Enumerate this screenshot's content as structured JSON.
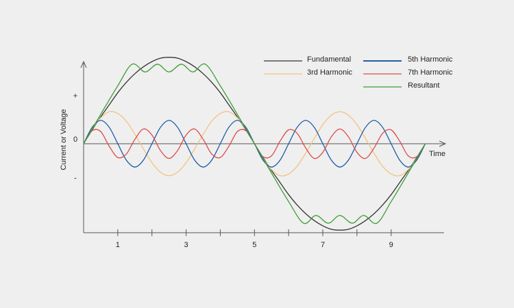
{
  "chart_data": {
    "type": "line",
    "x_label": "Time",
    "y_label": "Current or Voltage",
    "xlim": [
      0,
      10.55
    ],
    "ylim": [
      -1.03,
      0.95
    ],
    "xticks": [
      1,
      3,
      5,
      7,
      9
    ],
    "xminorticks": [
      2,
      4,
      6,
      8
    ],
    "yticks": [
      {
        "value": 0.5,
        "label": "+"
      },
      {
        "value": 0,
        "label": "0"
      },
      {
        "value": -0.45,
        "label": "-"
      }
    ],
    "grid": false,
    "x": [
      0,
      0.25,
      0.5,
      0.75,
      1,
      1.25,
      1.5,
      1.75,
      2,
      2.25,
      2.5,
      2.75,
      3,
      3.25,
      3.5,
      3.75,
      4,
      4.25,
      4.5,
      4.75,
      5,
      5.25,
      5.5,
      5.75,
      6,
      6.25,
      6.5,
      6.75,
      7,
      7.25,
      7.5,
      7.75,
      8,
      8.25,
      8.5,
      8.75,
      9,
      9.25,
      9.5,
      9.75,
      10
    ],
    "series": [
      {
        "name": "Fundamental",
        "color": "#333333",
        "values": [
          0,
          0.16,
          0.31,
          0.45,
          0.59,
          0.71,
          0.81,
          0.89,
          0.95,
          0.99,
          1,
          0.99,
          0.95,
          0.89,
          0.81,
          0.71,
          0.59,
          0.45,
          0.31,
          0.16,
          0,
          -0.16,
          -0.31,
          -0.45,
          -0.59,
          -0.71,
          -0.81,
          -0.89,
          -0.95,
          -0.99,
          -1,
          -0.99,
          -0.95,
          -0.89,
          -0.81,
          -0.71,
          -0.59,
          -0.45,
          -0.31,
          -0.16,
          0
        ]
      },
      {
        "name": "3rd Harmonic",
        "color": "#f2c27e",
        "values": [
          0,
          0.17,
          0.3,
          0.37,
          0.35,
          0.26,
          0.11,
          -0.06,
          -0.22,
          -0.33,
          -0.37,
          -0.33,
          -0.22,
          -0.06,
          0.11,
          0.26,
          0.35,
          0.37,
          0.3,
          0.17,
          0,
          -0.17,
          -0.3,
          -0.37,
          -0.35,
          -0.26,
          -0.11,
          0.06,
          0.22,
          0.33,
          0.37,
          0.33,
          0.22,
          0.06,
          -0.11,
          -0.26,
          -0.35,
          -0.37,
          -0.3,
          -0.17,
          0
        ]
      },
      {
        "name": "5th Harmonic",
        "color": "#1f5fa6",
        "values": [
          0,
          0.19,
          0.27,
          0.19,
          0,
          -0.19,
          -0.27,
          -0.19,
          0,
          0.19,
          0.27,
          0.19,
          0,
          -0.19,
          -0.27,
          -0.19,
          0,
          0.19,
          0.27,
          0.19,
          0,
          -0.19,
          -0.27,
          -0.19,
          0,
          0.19,
          0.27,
          0.19,
          0,
          -0.19,
          -0.27,
          -0.19,
          0,
          0.19,
          0.27,
          0.19,
          0,
          -0.19,
          -0.27,
          -0.19,
          0
        ]
      },
      {
        "name": "7th Harmonic",
        "color": "#dd4b4b",
        "values": [
          0,
          0.15,
          0.14,
          -0.03,
          -0.16,
          -0.12,
          0.05,
          0.17,
          0.1,
          -0.08,
          -0.17,
          -0.08,
          0.1,
          0.17,
          0.05,
          -0.12,
          -0.16,
          -0.03,
          0.14,
          0.15,
          0,
          -0.15,
          -0.14,
          0.03,
          0.16,
          0.12,
          -0.05,
          -0.17,
          -0.1,
          0.08,
          0.17,
          0.08,
          -0.1,
          -0.17,
          -0.05,
          0.12,
          0.16,
          0.03,
          -0.14,
          -0.15,
          0
        ]
      },
      {
        "name": "Resultant",
        "color": "#3c9e35",
        "x": [
          0,
          0.5,
          1,
          1.42,
          1.8,
          2.16,
          2.5,
          2.86,
          3.2,
          3.56,
          4,
          4.5,
          5,
          5.5,
          6,
          6.44,
          6.8,
          7.16,
          7.5,
          7.86,
          8.2,
          8.58,
          9,
          9.5,
          10
        ],
        "values": [
          0,
          0.34,
          0.67,
          0.92,
          0.83,
          0.92,
          0.83,
          0.92,
          0.83,
          0.92,
          0.67,
          0.34,
          0,
          -0.34,
          -0.67,
          -0.92,
          -0.83,
          -0.92,
          -0.83,
          -0.92,
          -0.83,
          -0.92,
          -0.67,
          -0.34,
          0
        ]
      }
    ]
  }
}
